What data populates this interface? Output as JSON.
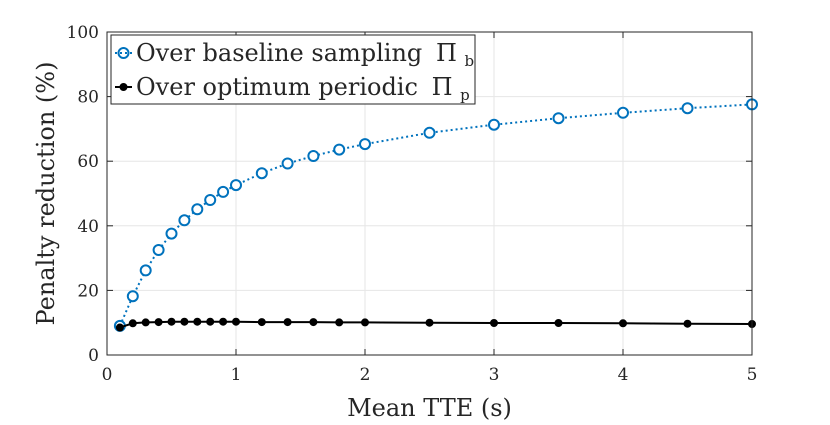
{
  "chart_data": {
    "type": "line",
    "title": "",
    "xlabel": "Mean TTE (s)",
    "ylabel": "Penalty reduction (%)",
    "xlim": [
      0,
      5
    ],
    "ylim": [
      0,
      100
    ],
    "xticks": [
      0,
      1,
      2,
      3,
      4,
      5
    ],
    "yticks": [
      0,
      20,
      40,
      60,
      80,
      100
    ],
    "grid": true,
    "legend_position": "top-left",
    "x": [
      0.1,
      0.2,
      0.3,
      0.4,
      0.5,
      0.6,
      0.7,
      0.8,
      0.9,
      1.0,
      1.2,
      1.4,
      1.6,
      1.8,
      2.0,
      2.5,
      3.0,
      3.5,
      4.0,
      4.5,
      5.0
    ],
    "series": [
      {
        "name": "Over baseline sampling",
        "symbol": "Π",
        "subscript": "b",
        "color": "#0072BD",
        "line_style": "dotted",
        "marker": "open-circle",
        "values": [
          9,
          18.2,
          26.2,
          32.5,
          37.6,
          41.7,
          45.1,
          48.0,
          50.5,
          52.6,
          56.3,
          59.3,
          61.6,
          63.6,
          65.3,
          68.8,
          71.3,
          73.3,
          75.0,
          76.4,
          77.6
        ]
      },
      {
        "name": "Over optimum periodic",
        "symbol": "Π",
        "subscript": "p",
        "color": "#000000",
        "line_style": "solid",
        "marker": "filled-circle",
        "values": [
          8.5,
          9.8,
          10.1,
          10.2,
          10.3,
          10.3,
          10.3,
          10.3,
          10.3,
          10.3,
          10.2,
          10.2,
          10.2,
          10.1,
          10.1,
          10.0,
          9.9,
          9.9,
          9.8,
          9.7,
          9.6
        ]
      }
    ]
  }
}
